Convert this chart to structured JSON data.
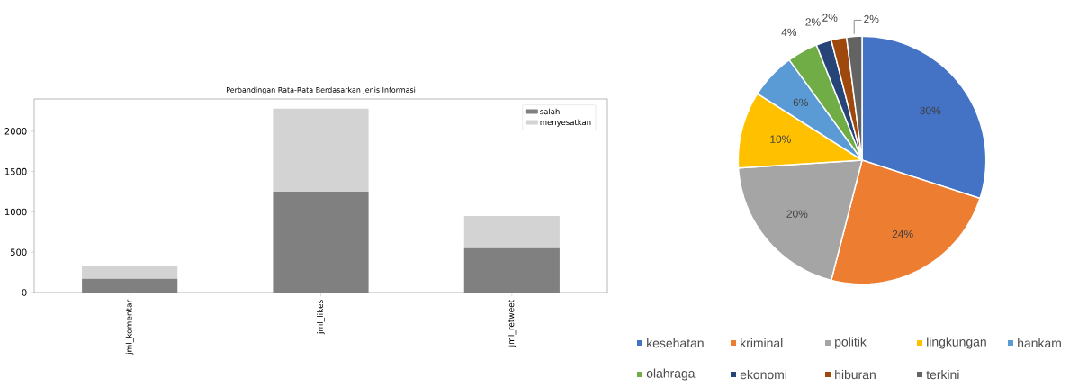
{
  "chart_data": [
    {
      "type": "bar",
      "title": "Perbandingan Rata-Rata Berdasarkan Jenis Informasi",
      "categories": [
        "jml_komentar",
        "jml_likes",
        "jml_retweet"
      ],
      "stacked": true,
      "series": [
        {
          "name": "salah",
          "color": "#808080",
          "values": [
            170,
            1250,
            550
          ]
        },
        {
          "name": "menyesatkan",
          "color": "#d3d3d3",
          "values": [
            160,
            1030,
            400
          ]
        }
      ],
      "ylim": [
        0,
        2400
      ],
      "yticks": [
        0,
        500,
        1000,
        1500,
        2000
      ],
      "legend": "top right",
      "grid": false
    },
    {
      "type": "pie",
      "categories": [
        "kesehatan",
        "kriminal",
        "politik",
        "lingkungan",
        "hankam",
        "olahraga",
        "ekonomi",
        "hiburan",
        "terkini"
      ],
      "values": [
        30,
        24,
        20,
        10,
        6,
        4,
        2,
        2,
        2
      ],
      "value_labels": [
        "30%",
        "24%",
        "20%",
        "10%",
        "6%",
        "4%",
        "2%",
        "2%",
        "2%"
      ],
      "colors": [
        "#4472c4",
        "#ed7d31",
        "#a5a5a5",
        "#ffc000",
        "#5b9bd5",
        "#70ad47",
        "#264478",
        "#9e480e",
        "#636363"
      ],
      "legend": "bottom"
    }
  ]
}
